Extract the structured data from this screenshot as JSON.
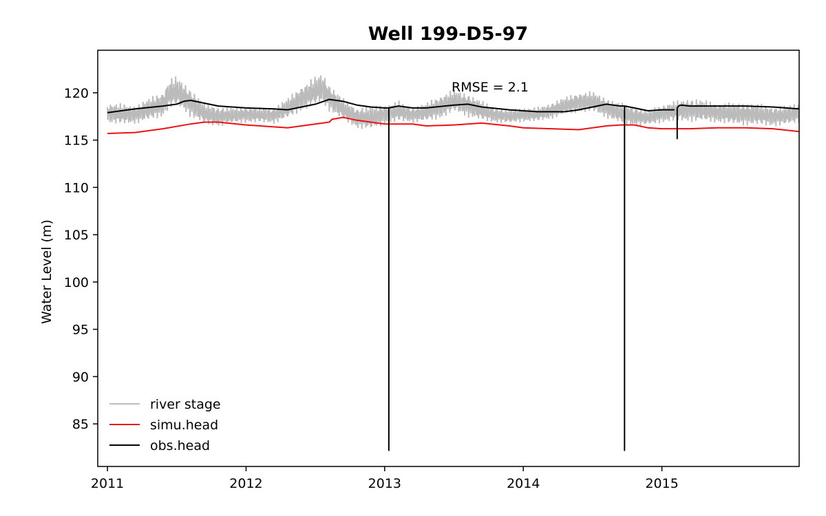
{
  "chart_data": {
    "type": "line",
    "title": "Well 199-D5-97",
    "xlabel": "",
    "ylabel": "Water Level (m)",
    "xlim": [
      2010.93,
      2015.99
    ],
    "ylim": [
      80.5,
      124.5
    ],
    "x_ticks": [
      2011,
      2012,
      2013,
      2014,
      2015
    ],
    "x_tick_labels": [
      "2011",
      "2012",
      "2013",
      "2014",
      "2015"
    ],
    "y_ticks": [
      85,
      90,
      95,
      100,
      105,
      110,
      115,
      120
    ],
    "y_tick_labels": [
      "85",
      "90",
      "95",
      "100",
      "105",
      "110",
      "115",
      "120"
    ],
    "grid": false,
    "legend_position": "lower-left",
    "annotation": "RMSE = 2.1",
    "colors": {
      "river_stage": "#bbbbbb",
      "simu_head": "#ee1111",
      "obs_head": "#000000"
    },
    "series": [
      {
        "name": "river stage",
        "color": "#bbbbbb",
        "band": true,
        "x": [
          2011.0,
          2011.1,
          2011.2,
          2011.3,
          2011.4,
          2011.45,
          2011.5,
          2011.6,
          2011.7,
          2011.8,
          2011.9,
          2012.0,
          2012.1,
          2012.2,
          2012.3,
          2012.4,
          2012.5,
          2012.55,
          2012.6,
          2012.7,
          2012.8,
          2012.9,
          2013.0,
          2013.1,
          2013.2,
          2013.3,
          2013.4,
          2013.5,
          2013.6,
          2013.7,
          2013.8,
          2013.9,
          2014.0,
          2014.1,
          2014.2,
          2014.3,
          2014.4,
          2014.5,
          2014.6,
          2014.7,
          2014.8,
          2014.9,
          2015.0,
          2015.1,
          2015.2,
          2015.3,
          2015.4,
          2015.5,
          2015.6,
          2015.7,
          2015.8,
          2015.9,
          2015.99
        ],
        "high": [
          119.0,
          118.9,
          118.7,
          119.5,
          120.2,
          121.6,
          121.8,
          120.5,
          119.0,
          118.6,
          118.5,
          118.6,
          118.5,
          118.5,
          119.5,
          120.8,
          121.8,
          122.2,
          121.0,
          119.5,
          118.5,
          118.7,
          118.8,
          119.2,
          118.5,
          119.0,
          119.8,
          120.4,
          120.0,
          119.2,
          118.5,
          118.3,
          118.5,
          118.5,
          119.0,
          119.6,
          120.1,
          120.2,
          119.5,
          119.0,
          118.6,
          118.2,
          118.8,
          119.2,
          119.5,
          119.3,
          119.0,
          119.0,
          119.0,
          118.9,
          118.6,
          118.7,
          119.0
        ],
        "low": [
          116.7,
          116.6,
          116.7,
          117.0,
          117.4,
          118.3,
          118.5,
          117.4,
          116.6,
          116.4,
          116.7,
          116.8,
          116.8,
          116.7,
          117.2,
          118.0,
          118.6,
          118.8,
          118.0,
          117.0,
          116.2,
          116.0,
          116.6,
          116.9,
          116.8,
          116.9,
          117.2,
          117.9,
          117.4,
          117.0,
          116.8,
          116.7,
          116.9,
          116.9,
          117.2,
          117.6,
          117.9,
          117.9,
          117.3,
          116.7,
          116.4,
          116.5,
          116.8,
          116.9,
          116.9,
          116.9,
          116.8,
          116.6,
          116.5,
          116.5,
          116.4,
          116.5,
          116.8
        ]
      },
      {
        "name": "simu.head",
        "color": "#ee1111",
        "x": [
          2011.0,
          2011.2,
          2011.4,
          2011.6,
          2011.7,
          2011.8,
          2012.0,
          2012.2,
          2012.3,
          2012.5,
          2012.6,
          2012.62,
          2012.7,
          2012.8,
          2012.9,
          2013.0,
          2013.2,
          2013.3,
          2013.5,
          2013.7,
          2013.9,
          2014.0,
          2014.2,
          2014.4,
          2014.6,
          2014.7,
          2014.8,
          2014.9,
          2015.0,
          2015.2,
          2015.4,
          2015.6,
          2015.8,
          2015.99
        ],
        "y": [
          115.7,
          115.8,
          116.2,
          116.7,
          116.9,
          116.9,
          116.6,
          116.4,
          116.3,
          116.7,
          116.9,
          117.2,
          117.4,
          117.1,
          116.9,
          116.7,
          116.7,
          116.5,
          116.6,
          116.8,
          116.5,
          116.3,
          116.2,
          116.1,
          116.5,
          116.6,
          116.6,
          116.3,
          116.2,
          116.2,
          116.3,
          116.3,
          116.2,
          115.9
        ]
      },
      {
        "name": "obs.head",
        "color": "#000000",
        "x": [
          2011.0,
          2011.2,
          2011.4,
          2011.5,
          2011.55,
          2011.6,
          2011.7,
          2011.8,
          2012.0,
          2012.2,
          2012.3,
          2012.4,
          2012.5,
          2012.6,
          2012.7,
          2012.8,
          2012.9,
          2013.0,
          2013.03,
          2013.03,
          2013.03,
          2013.1,
          2013.2,
          2013.3,
          2013.5,
          2013.6,
          2013.7,
          2013.9,
          2014.0,
          2014.1,
          2014.2,
          2014.3,
          2014.4,
          2014.5,
          2014.6,
          2014.7,
          2014.73,
          2014.73,
          2014.73,
          2014.8,
          2014.9,
          2015.0,
          2015.09,
          2015.1,
          2015.11,
          2015.11,
          2015.11,
          2015.12,
          2015.14,
          2015.2,
          2015.4,
          2015.6,
          2015.8,
          2015.99
        ],
        "y": [
          117.9,
          118.3,
          118.6,
          118.8,
          119.1,
          119.2,
          118.9,
          118.6,
          118.4,
          118.3,
          118.2,
          118.5,
          118.8,
          119.3,
          119.1,
          118.7,
          118.5,
          118.4,
          118.4,
          82.2,
          118.4,
          118.6,
          118.4,
          118.4,
          118.7,
          118.8,
          118.5,
          118.2,
          118.1,
          118.0,
          118.0,
          118.0,
          118.2,
          118.5,
          118.8,
          118.6,
          118.6,
          82.2,
          118.6,
          118.4,
          118.1,
          118.2,
          118.2,
          null,
          115.1,
          115.2,
          118.4,
          118.6,
          118.7,
          118.6,
          118.6,
          118.6,
          118.5,
          118.3
        ]
      }
    ]
  }
}
